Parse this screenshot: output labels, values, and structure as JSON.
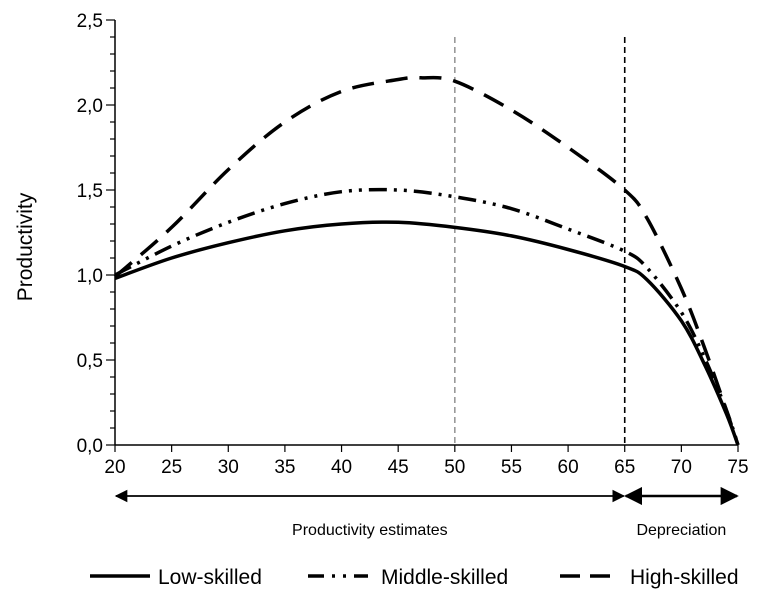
{
  "chart_data": {
    "type": "line",
    "xlabel": "",
    "ylabel": "Productivity",
    "xlim": [
      20,
      75
    ],
    "ylim": [
      0,
      2.5
    ],
    "xticks": [
      "20",
      "25",
      "30",
      "35",
      "40",
      "45",
      "50",
      "55",
      "60",
      "65",
      "70",
      "75"
    ],
    "yticks": [
      "0,0",
      "0,5",
      "1,0",
      "1,5",
      "2,0",
      "2,5"
    ],
    "grid": false,
    "legend_position": "bottom",
    "reference_lines": [
      {
        "x": 50,
        "color": "#999999",
        "style": "dashed"
      },
      {
        "x": 65,
        "color": "#000000",
        "style": "dashed"
      }
    ],
    "ranges": [
      {
        "label": "Productivity estimates",
        "from": 20,
        "to": 65
      },
      {
        "label": "Depreciation",
        "from": 65,
        "to": 75
      }
    ],
    "series": [
      {
        "name": "Low-skilled",
        "style": "solid",
        "x": [
          20,
          25,
          30,
          35,
          40,
          45,
          50,
          55,
          60,
          65,
          67,
          70,
          72,
          74,
          75
        ],
        "values": [
          0.98,
          1.1,
          1.19,
          1.26,
          1.3,
          1.31,
          1.28,
          1.23,
          1.15,
          1.05,
          0.97,
          0.73,
          0.48,
          0.18,
          0.0
        ]
      },
      {
        "name": "Middle-skilled",
        "style": "dashdotdot",
        "x": [
          20,
          25,
          30,
          35,
          40,
          45,
          50,
          55,
          60,
          65,
          67,
          70,
          72,
          74,
          75
        ],
        "values": [
          1.0,
          1.17,
          1.31,
          1.42,
          1.49,
          1.5,
          1.46,
          1.39,
          1.27,
          1.14,
          1.04,
          0.78,
          0.52,
          0.2,
          0.0
        ]
      },
      {
        "name": "High-skilled",
        "style": "dashed",
        "x": [
          20,
          25,
          30,
          35,
          40,
          45,
          47,
          50,
          55,
          60,
          65,
          67,
          70,
          72,
          74,
          75
        ],
        "values": [
          0.99,
          1.28,
          1.62,
          1.9,
          2.08,
          2.15,
          2.16,
          2.14,
          1.97,
          1.75,
          1.5,
          1.33,
          0.92,
          0.58,
          0.2,
          0.0
        ]
      }
    ]
  }
}
